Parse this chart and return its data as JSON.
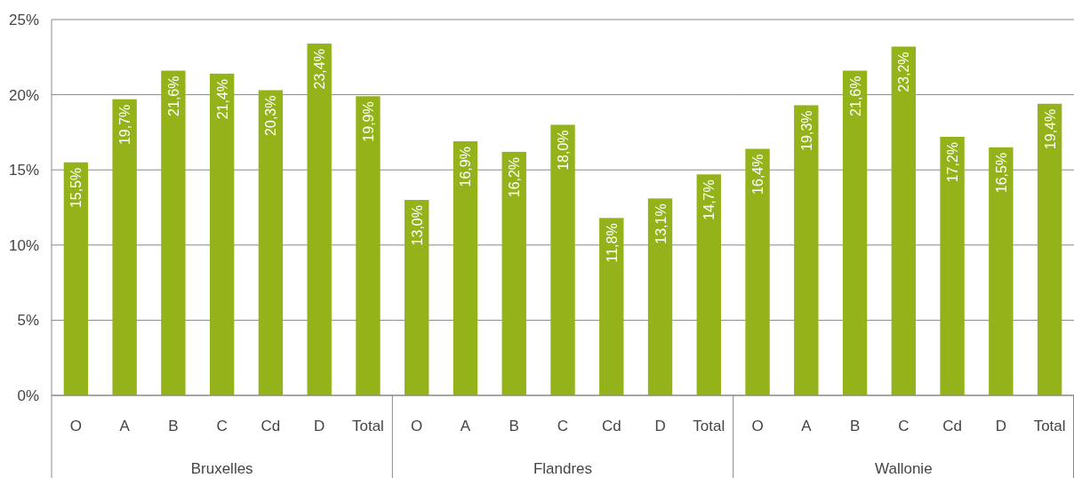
{
  "chart_data": [
    {
      "type": "bar",
      "xlabel": "Bruxelles",
      "categories": [
        "O",
        "A",
        "B",
        "C",
        "Cd",
        "D",
        "Total"
      ],
      "values": [
        15.5,
        19.7,
        21.6,
        21.4,
        20.3,
        23.4,
        19.9
      ],
      "color": "#94b21a",
      "value_labels": [
        "15,5%",
        "19,7%",
        "21,6%",
        "21,4%",
        "20,3%",
        "23,4%",
        "19,9%"
      ],
      "ylim": [
        0,
        25
      ],
      "yticks": [
        {
          "value": 0,
          "label": "0%"
        },
        {
          "value": 5,
          "label": "5%"
        },
        {
          "value": 10,
          "label": "10%"
        },
        {
          "value": 15,
          "label": "15%"
        },
        {
          "value": 20,
          "label": "20%"
        },
        {
          "value": 25,
          "label": "25%"
        }
      ],
      "grid": "y"
    },
    {
      "type": "bar",
      "xlabel": "Flandres",
      "categories": [
        "O",
        "A",
        "B",
        "C",
        "Cd",
        "D",
        "Total"
      ],
      "values": [
        13.0,
        16.9,
        16.2,
        18.0,
        11.8,
        13.1,
        14.7
      ],
      "color": "#94b21a",
      "value_labels": [
        "13,0%",
        "16,9%",
        "16,2%",
        "18,0%",
        "11,8%",
        "13,1%",
        "14,7%"
      ],
      "ylim": [
        0,
        25
      ],
      "yticks": [
        {
          "value": 0,
          "label": null
        },
        {
          "value": 5,
          "label": null
        },
        {
          "value": 10,
          "label": null
        },
        {
          "value": 15,
          "label": null
        },
        {
          "value": 20,
          "label": null
        },
        {
          "value": 25,
          "label": null
        }
      ],
      "grid": "y",
      "tick_labels": "x"
    },
    {
      "type": "bar",
      "xlabel": "Wallonie",
      "categories": [
        "O",
        "A",
        "B",
        "C",
        "Cd",
        "D",
        "Total"
      ],
      "values": [
        16.4,
        19.3,
        21.6,
        23.2,
        17.2,
        16.5,
        19.4
      ],
      "color": "#94b21a",
      "value_labels": [
        "16,4%",
        "19,3%",
        "21,6%",
        "23,2%",
        "17,2%",
        "16,5%",
        "19,4%"
      ],
      "ylim": [
        0,
        25
      ],
      "yticks": [
        {
          "value": 0,
          "label": null
        },
        {
          "value": 5,
          "label": null
        },
        {
          "value": 10,
          "label": null
        },
        {
          "value": 15,
          "label": null
        },
        {
          "value": 20,
          "label": null
        },
        {
          "value": 25,
          "label": null
        }
      ],
      "grid": "y",
      "tick_labels": "x"
    }
  ]
}
